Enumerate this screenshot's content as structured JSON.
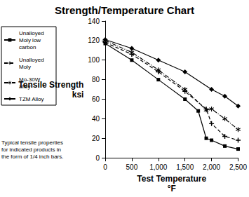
{
  "chart_data": {
    "type": "line",
    "title": "Strength/Temperature Chart",
    "x_label": "Test Temperature",
    "x_unit": "°F",
    "y_label": "Tensile Strength",
    "y_unit": "ksi",
    "note": "Typical tensile properties for indicated products in the form of 1/4 inch bars.",
    "xlim": [
      0,
      2500
    ],
    "xticks": [
      0,
      500,
      {
        "value": 1000,
        "label": "1,000"
      },
      {
        "value": 1500,
        "label": "1,500"
      },
      {
        "value": 2000,
        "label": "2,000"
      },
      {
        "value": 2500,
        "label": "2,500"
      }
    ],
    "ylim": [
      0,
      140
    ],
    "yticks": [
      0,
      20,
      40,
      60,
      80,
      100,
      120,
      140
    ],
    "grid": false,
    "legend": "left",
    "series": [
      {
        "name": "Unalloyed Moly low carbon",
        "color": "#000000",
        "marker": "square",
        "line_style": "solid",
        "x": [
          0,
          500,
          1000,
          1500,
          1750,
          1900,
          2000,
          2250,
          2500
        ],
        "values": [
          117,
          100,
          80,
          60,
          48,
          20,
          18,
          12,
          9
        ]
      },
      {
        "name": "Unalloyed Moly",
        "color": "#000000",
        "marker": "plus",
        "line_style": "dashed",
        "x": [
          0,
          500,
          1000,
          1500,
          1900,
          2000,
          2250,
          2500
        ],
        "values": [
          118,
          106,
          88,
          68,
          50,
          35,
          22,
          18
        ]
      },
      {
        "name": "Mo-30W alloy",
        "color": "#000000",
        "marker": "asterisk",
        "line_style": "dashdot",
        "x": [
          0,
          500,
          1000,
          1500,
          1900,
          2000,
          2250,
          2500
        ],
        "values": [
          120,
          108,
          90,
          70,
          49,
          50,
          40,
          29
        ]
      },
      {
        "name": "TZM Alloy",
        "color": "#000000",
        "marker": "diamond",
        "line_style": "solid",
        "x": [
          0,
          500,
          1000,
          1500,
          2000,
          2250,
          2500
        ],
        "values": [
          121,
          112,
          100,
          88,
          70,
          63,
          53
        ]
      }
    ]
  }
}
